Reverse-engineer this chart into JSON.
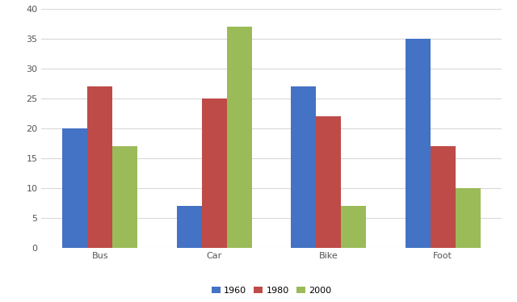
{
  "categories": [
    "Bus",
    "Car",
    "Bike",
    "Foot"
  ],
  "series": {
    "1960": [
      20,
      7,
      27,
      35
    ],
    "1980": [
      27,
      25,
      22,
      17
    ],
    "2000": [
      17,
      37,
      7,
      10
    ]
  },
  "colors": {
    "1960": "#4472C4",
    "1980": "#BE4B48",
    "2000": "#9BBB59"
  },
  "ylim": [
    0,
    40
  ],
  "yticks": [
    0,
    5,
    10,
    15,
    20,
    25,
    30,
    35,
    40
  ],
  "legend_labels": [
    "1960",
    "1980",
    "2000"
  ],
  "bar_width": 0.22,
  "background_color": "#FFFFFF",
  "grid_color": "#D9D9D9",
  "font_size_ticks": 8,
  "font_size_legend": 8
}
